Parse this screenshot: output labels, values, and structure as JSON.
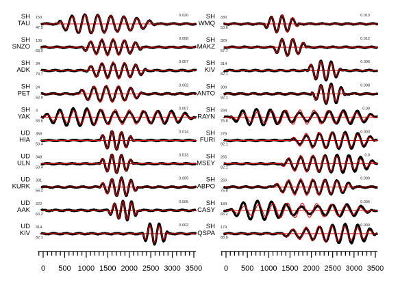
{
  "chart_data": [
    {
      "type": "line",
      "title": "",
      "xlabel": "",
      "ylabel": "",
      "xlim": [
        -150,
        3600
      ],
      "xticks": [
        "0",
        "500",
        "1000",
        "1500",
        "2000",
        "2500",
        "3000",
        "3500"
      ],
      "xtick_values": [
        0,
        500,
        1000,
        1500,
        2000,
        2500,
        3000,
        3500
      ],
      "series_colors": {
        "observed": "#000000",
        "synthetic": "#e00000"
      },
      "traces": [
        {
          "component": "SH",
          "station": "TAU",
          "azimuth": "150",
          "distance": "47.5",
          "amplitude": "0.020",
          "wave_start": 350,
          "wave_center": 1100,
          "wave_end": 2600,
          "period": 300,
          "misfit": 0.15
        },
        {
          "component": "SH",
          "station": "SNZO",
          "azimuth": "136",
          "distance": "63.0",
          "amplitude": "0.008",
          "wave_start": 900,
          "wave_center": 1500,
          "wave_end": 2300,
          "period": 260,
          "misfit": 0.2
        },
        {
          "component": "SH",
          "station": "ADK",
          "azimuth": "34",
          "distance": "74.7",
          "amplitude": "0.007",
          "wave_start": 1000,
          "wave_center": 1600,
          "wave_end": 2400,
          "period": 260,
          "misfit": 0.2
        },
        {
          "component": "SH",
          "station": "PET",
          "azimuth": "24",
          "distance": "62.9",
          "amplitude": "0.002",
          "wave_start": 800,
          "wave_center": 1500,
          "wave_end": 2300,
          "period": 280,
          "misfit": 0.25
        },
        {
          "component": "SH",
          "station": "YAK",
          "azimuth": "4",
          "distance": "53.6",
          "amplitude": "0.007",
          "wave_start": 0,
          "wave_center": 1500,
          "wave_end": 3500,
          "period": 320,
          "misfit": 0.5
        },
        {
          "component": "UD",
          "station": "HIA",
          "azimuth": "359",
          "distance": "50.4",
          "amplitude": "0.014",
          "wave_start": 1300,
          "wave_center": 1650,
          "wave_end": 2100,
          "period": 220,
          "misfit": 0.1
        },
        {
          "component": "UD",
          "station": "ULN",
          "azimuth": "348",
          "distance": "50.4",
          "amplitude": "0.013",
          "wave_start": 1300,
          "wave_center": 1650,
          "wave_end": 2100,
          "period": 220,
          "misfit": 0.1
        },
        {
          "component": "UD",
          "station": "KURK",
          "azimuth": "331",
          "distance": "56.2",
          "amplitude": "0.009",
          "wave_start": 1300,
          "wave_center": 1750,
          "wave_end": 2200,
          "period": 220,
          "misfit": 0.15
        },
        {
          "component": "UD",
          "station": "AAK",
          "azimuth": "322",
          "distance": "60.2",
          "amplitude": "0.005",
          "wave_start": 1500,
          "wave_center": 1900,
          "wave_end": 2200,
          "period": 200,
          "misfit": 0.15
        },
        {
          "component": "UD",
          "station": "KIV",
          "azimuth": "314",
          "distance": "82.1",
          "amplitude": "0.002",
          "wave_start": 2300,
          "wave_center": 2550,
          "wave_end": 2900,
          "period": 220,
          "misfit": 0.2
        },
        {
          "component": "SH",
          "station": "WMQ",
          "azimuth": "330",
          "distance": "53.6",
          "amplitude": "0.013",
          "wave_start": 900,
          "wave_center": 1300,
          "wave_end": 1700,
          "period": 250,
          "misfit": 0.15
        },
        {
          "component": "SH",
          "station": "MAKZ",
          "azimuth": "329",
          "distance": "57.7",
          "amplitude": "0.012",
          "wave_start": 1100,
          "wave_center": 1450,
          "wave_end": 1900,
          "period": 250,
          "misfit": 0.15
        },
        {
          "component": "SH",
          "station": "KIV",
          "azimuth": "314",
          "distance": "82.1",
          "amplitude": "0.006",
          "wave_start": 1900,
          "wave_center": 2200,
          "wave_end": 2700,
          "period": 240,
          "misfit": 0.15
        },
        {
          "component": "SH",
          "station": "ANTO",
          "azimuth": "309",
          "distance": "82.1",
          "amplitude": "0.008",
          "wave_start": 2000,
          "wave_center": 2350,
          "wave_end": 2800,
          "period": 240,
          "misfit": 0.15
        },
        {
          "component": "SH",
          "station": "RAYN",
          "azimuth": "294",
          "distance": "76.8",
          "amplitude": "0.00",
          "wave_start": 100,
          "wave_center": 1700,
          "wave_end": 3500,
          "period": 330,
          "misfit": 0.6
        },
        {
          "component": "SH",
          "station": "FURI",
          "azimuth": "279",
          "distance": "82.1",
          "amplitude": "0.003",
          "wave_start": 1500,
          "wave_center": 2200,
          "wave_end": 3500,
          "period": 300,
          "misfit": 0.35
        },
        {
          "component": "SH",
          "station": "MSEY",
          "azimuth": "265",
          "distance": "82.1",
          "amplitude": "0.0",
          "wave_start": 1300,
          "wave_center": 1800,
          "wave_end": 3500,
          "period": 280,
          "misfit": 0.3
        },
        {
          "component": "SH",
          "station": "ABPO",
          "azimuth": "250",
          "distance": "75.8",
          "amplitude": "0.009",
          "wave_start": 1100,
          "wave_center": 1750,
          "wave_end": 3000,
          "period": 280,
          "misfit": 0.3
        },
        {
          "component": "SH",
          "station": "CASY",
          "azimuth": "184",
          "distance": "65.2",
          "amplitude": "0.006",
          "wave_start": 100,
          "wave_center": 1500,
          "wave_end": 3400,
          "period": 340,
          "misfit": 0.6
        },
        {
          "component": "SH",
          "station": "QSPA",
          "azimuth": "179",
          "distance": "88.8",
          "amplitude": "0.009",
          "wave_start": 1300,
          "wave_center": 2400,
          "wave_end": 3500,
          "period": 300,
          "misfit": 0.45
        }
      ]
    }
  ]
}
